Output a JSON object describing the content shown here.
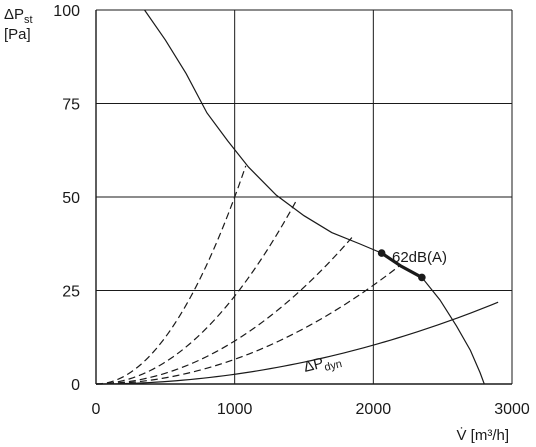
{
  "chart_data": {
    "type": "line",
    "title": "",
    "ylabel": {
      "main": "ΔP",
      "sub": "st",
      "unit": "[Pa]"
    },
    "xlabel": "V̇ [m³/h]",
    "xlim": [
      0,
      3000
    ],
    "ylim": [
      0,
      100
    ],
    "x_ticks": [
      0,
      1000,
      2000,
      3000
    ],
    "y_ticks": [
      0,
      25,
      50,
      75,
      100
    ],
    "x_tick_labels": [
      "0",
      "1000",
      "2000",
      "3000"
    ],
    "y_tick_labels": [
      "0",
      "25",
      "50",
      "75",
      "100"
    ],
    "grid": true,
    "fan_curve": [
      [
        350,
        100
      ],
      [
        500,
        92
      ],
      [
        650,
        83
      ],
      [
        800,
        72.5
      ],
      [
        950,
        65
      ],
      [
        1100,
        58
      ],
      [
        1300,
        50.5
      ],
      [
        1500,
        45
      ],
      [
        1700,
        40.5
      ],
      [
        1900,
        37.5
      ],
      [
        2060,
        35
      ],
      [
        2200,
        31.5
      ],
      [
        2350,
        28.5
      ],
      [
        2480,
        22.5
      ],
      [
        2600,
        15.5
      ],
      [
        2700,
        9
      ],
      [
        2770,
        3
      ],
      [
        2800,
        0
      ]
    ],
    "system_curves": [
      {
        "k": 5e-05,
        "x_max": 1080
      },
      {
        "k": 2.35e-05,
        "x_max": 1450
      },
      {
        "k": 1.15e-05,
        "x_max": 1850
      },
      {
        "k": 6.6e-06,
        "x_max": 2200
      }
    ],
    "dynamic_pressure": {
      "name_main": "ΔP",
      "name_sub": "dyn",
      "k": 2.6e-06,
      "x_max": 2900
    },
    "operating_range": {
      "label": "62dB(A)",
      "start": [
        2060,
        35
      ],
      "end": [
        2350,
        28.5
      ]
    }
  }
}
